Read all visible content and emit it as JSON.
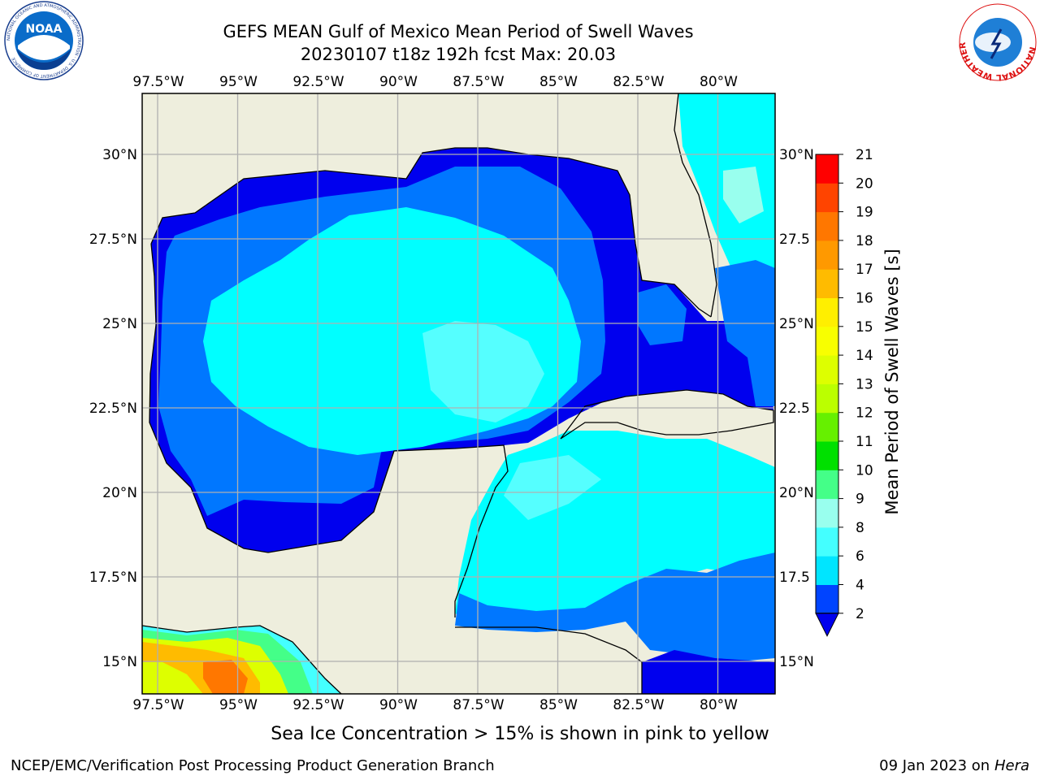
{
  "header": {
    "title_line1": "GEFS MEAN Gulf of Mexico Mean Period of Swell Waves",
    "title_line2": "20230107 t18z 192h fcst   Max: 20.03"
  },
  "logos": {
    "left": {
      "name": "noaa-logo",
      "text": "NOAA",
      "ring_text": "NATIONAL OCEANIC AND ATMOSPHERIC ADMINISTRATION · U.S. DEPARTMENT OF COMMERCE"
    },
    "right": {
      "name": "nws-logo",
      "ring_text": "NATIONAL WEATHER SERVICE"
    }
  },
  "map": {
    "lon_labels": [
      "97.5°W",
      "95°W",
      "92.5°W",
      "90°W",
      "87.5°W",
      "85°W",
      "82.5°W",
      "80°W"
    ],
    "lat_labels_left": [
      "30°N",
      "27.5°N",
      "25°N",
      "22.5°N",
      "20°N",
      "17.5°N",
      "15°N"
    ],
    "lat_labels_right": [
      "30°N",
      "27.5",
      "25°N",
      "22.5",
      "20°N",
      "17.5",
      "15°N"
    ],
    "colors": {
      "land": "#eeeedd",
      "missing": "#ffffff",
      "grid": "#b0b0b0"
    }
  },
  "colorbar": {
    "label": "Mean Period of Swell Waves [s]",
    "ticks": [
      "2",
      "4",
      "6",
      "8",
      "9",
      "10",
      "11",
      "12",
      "13",
      "14",
      "15",
      "16",
      "17",
      "18",
      "19",
      "20",
      "21"
    ],
    "colors": [
      "#0044ff",
      "#00e5ff",
      "#44ffff",
      "#99ffee",
      "#44ff88",
      "#00e000",
      "#66f000",
      "#bbff00",
      "#ddff00",
      "#f8ff00",
      "#ffef00",
      "#ffbb00",
      "#ff9900",
      "#ff7700",
      "#ff4400",
      "#ff0000"
    ],
    "under_color": "#0000ee"
  },
  "footer": {
    "caption": "Sea Ice Concentration > 15% is shown in pink to yellow",
    "credit": "NCEP/EMC/Verification Post Processing Product Generation Branch",
    "date": "09 Jan 2023 on",
    "machine": "Hera"
  }
}
